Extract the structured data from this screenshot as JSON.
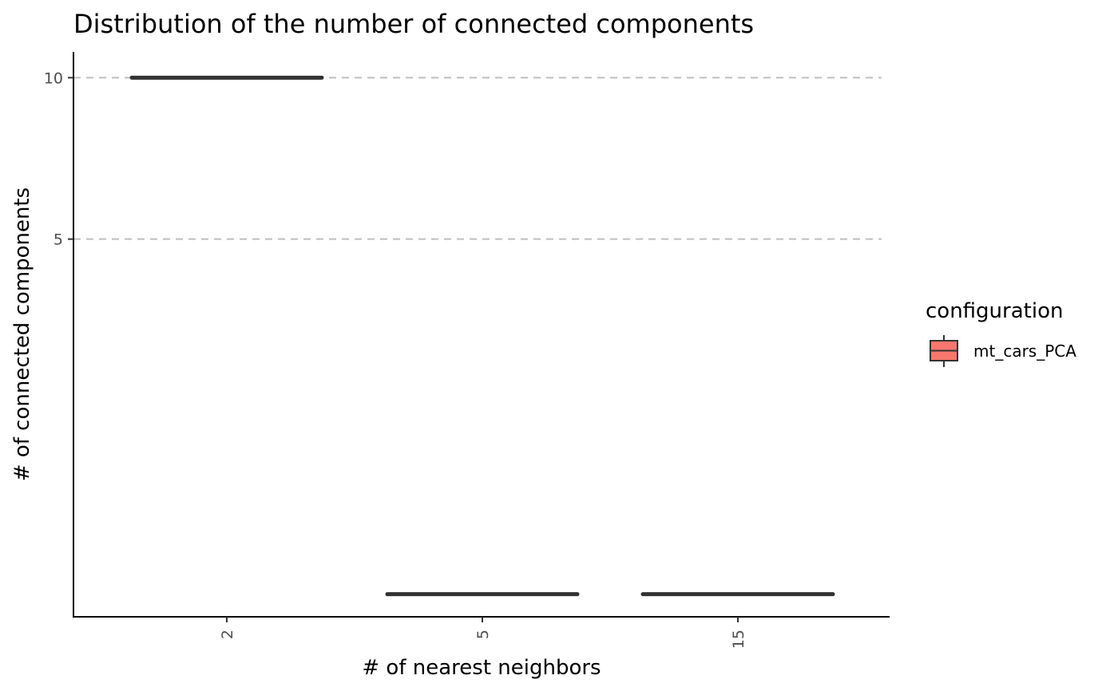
{
  "chart_data": {
    "type": "box",
    "title": "Distribution of the number of connected components",
    "xlabel": "# of nearest neighbors",
    "ylabel": "# of connected components",
    "categories": [
      "2",
      "5",
      "15"
    ],
    "y_ticks": [
      5,
      10
    ],
    "y_tick_labels": [
      "5",
      "10"
    ],
    "ylim": [
      -6.7,
      10.8
    ],
    "grid": "horizontal-dashed-at-ticks",
    "series": [
      {
        "name": "mt_cars_PCA",
        "color": "#F8766D",
        "values": [
          10,
          -6,
          -6
        ]
      }
    ],
    "legend": {
      "title": "configuration",
      "position": "right"
    }
  }
}
